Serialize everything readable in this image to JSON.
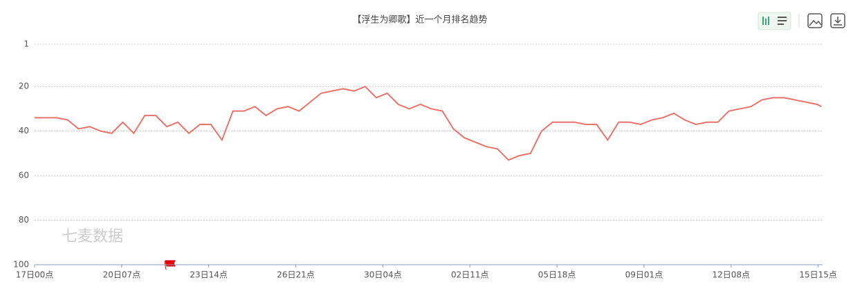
{
  "chart_data": {
    "type": "line",
    "title": "【浮生为卿歌】近一个月排名趋势",
    "watermark": "七麦数据",
    "x": [
      0,
      10,
      20,
      30,
      40,
      50,
      60,
      70,
      80,
      90,
      100,
      110,
      120,
      130,
      140,
      150,
      160,
      170,
      180,
      190,
      200,
      210,
      220,
      230,
      240,
      250,
      260,
      270,
      280,
      290,
      300,
      310,
      320,
      330,
      340,
      350,
      360,
      370,
      380,
      390,
      400,
      410,
      420,
      430,
      440,
      450,
      460,
      470,
      480,
      490,
      500,
      510,
      520,
      530,
      540,
      550,
      560,
      570,
      580,
      590,
      600,
      610,
      620,
      630,
      640,
      650,
      660,
      670,
      680,
      690,
      700,
      710,
      714
    ],
    "series": [
      {
        "color": "#e8736c",
        "values": [
          34,
          34,
          34,
          35,
          39,
          38,
          40,
          41,
          36,
          41,
          33,
          33,
          38,
          36,
          41,
          37,
          37,
          44,
          31,
          31,
          29,
          33,
          30,
          29,
          31,
          27,
          23,
          22,
          21,
          22,
          20,
          25,
          23,
          28,
          30,
          28,
          30,
          31,
          39,
          43,
          45,
          47,
          48,
          53,
          51,
          50,
          40,
          36,
          36,
          36,
          37,
          37,
          44,
          36,
          36,
          37,
          35,
          34,
          32,
          35,
          37,
          36,
          36,
          31,
          30,
          29,
          26,
          25,
          25,
          26,
          27,
          28,
          29
        ]
      }
    ],
    "xlim": [
      0,
      715
    ],
    "xticks": [
      {
        "value": 0,
        "label": "17日00点"
      },
      {
        "value": 79,
        "label": "20日07点"
      },
      {
        "value": 158,
        "label": "23日14点"
      },
      {
        "value": 237,
        "label": "26日21点"
      },
      {
        "value": 316,
        "label": "30日04点"
      },
      {
        "value": 395,
        "label": "02日11点"
      },
      {
        "value": 474,
        "label": "05日18点"
      },
      {
        "value": 553,
        "label": "09日01点"
      },
      {
        "value": 632,
        "label": "12日08点"
      },
      {
        "value": 711,
        "label": "15日15点"
      }
    ],
    "ylim": [
      100,
      1
    ],
    "yticks": [
      1,
      20,
      40,
      60,
      80,
      100
    ],
    "grid": true
  }
}
